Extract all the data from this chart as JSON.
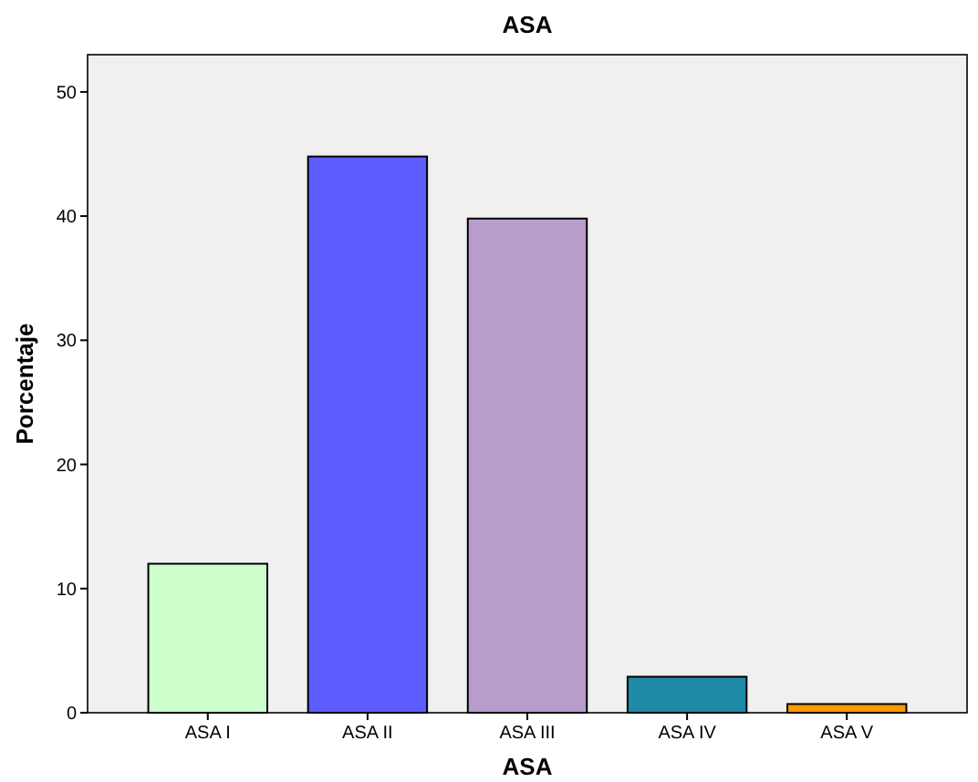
{
  "chart_data": {
    "type": "bar",
    "title": "ASA",
    "xlabel": "ASA",
    "ylabel": "Porcentaje",
    "categories": [
      "ASA I",
      "ASA II",
      "ASA III",
      "ASA IV",
      "ASA V"
    ],
    "values": [
      12.0,
      44.8,
      39.8,
      2.9,
      0.7
    ],
    "colors": [
      "#ccffcc",
      "#5c5cff",
      "#b89ccc",
      "#1f8aa6",
      "#ff9900"
    ],
    "ylim": [
      0,
      53
    ],
    "yticks": [
      0,
      10,
      20,
      30,
      40,
      50
    ],
    "grid": false
  }
}
